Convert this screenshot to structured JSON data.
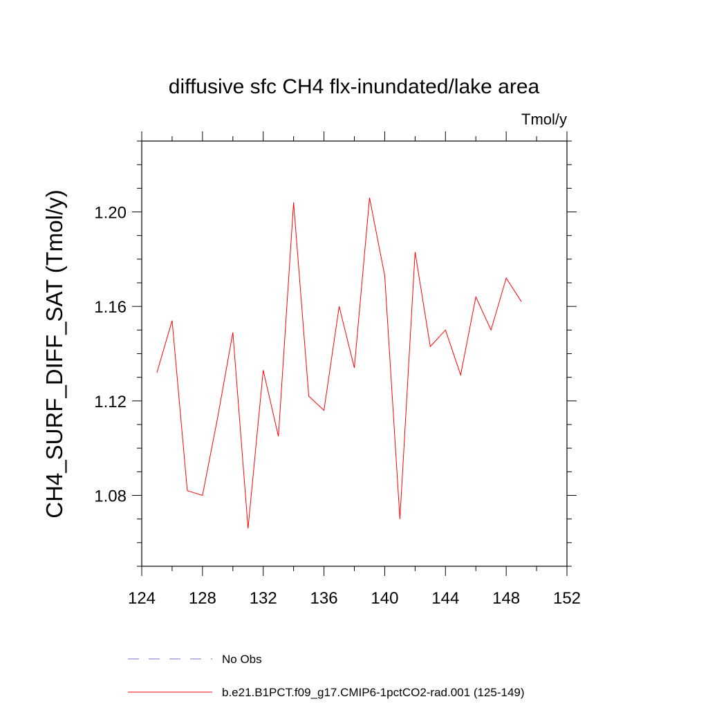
{
  "chart_data": {
    "type": "line",
    "title": "diffusive sfc CH4 flx-inundated/lake area",
    "units": "Tmol/y",
    "xlabel": "",
    "ylabel": "CH4_SURF_DIFF_SAT  (Tmol/y)",
    "xlim": [
      124,
      152
    ],
    "ylim": [
      1.05,
      1.23
    ],
    "xticks": [
      124,
      128,
      132,
      136,
      140,
      144,
      148,
      152
    ],
    "xtick_labels": [
      "124",
      "128",
      "132",
      "136",
      "140",
      "144",
      "148",
      "152"
    ],
    "yticks": [
      1.08,
      1.12,
      1.16,
      1.2
    ],
    "ytick_labels": [
      "1.08",
      "1.12",
      "1.16",
      "1.20"
    ],
    "grid": false,
    "legend_position": "bottom",
    "series": [
      {
        "name": "b.e21.B1PCT.f09_g17.CMIP6-1pctCO2-rad.001 (125-149)",
        "color": "#ff0000",
        "style": "solid",
        "x": [
          125,
          126,
          127,
          128,
          129,
          130,
          131,
          132,
          133,
          134,
          135,
          136,
          137,
          138,
          139,
          140,
          141,
          142,
          143,
          144,
          145,
          146,
          147,
          148,
          149
        ],
        "y": [
          1.132,
          1.154,
          1.082,
          1.08,
          1.113,
          1.149,
          1.066,
          1.133,
          1.105,
          1.204,
          1.122,
          1.116,
          1.16,
          1.134,
          1.206,
          1.173,
          1.07,
          1.183,
          1.143,
          1.15,
          1.131,
          1.164,
          1.15,
          1.172,
          1.162
        ]
      }
    ],
    "legend": [
      {
        "label": "No Obs",
        "color": "#7a6fc8",
        "style": "dashed"
      },
      {
        "label": "b.e21.B1PCT.f09_g17.CMIP6-1pctCO2-rad.001 (125-149)",
        "color": "#ff0000",
        "style": "solid"
      }
    ]
  }
}
